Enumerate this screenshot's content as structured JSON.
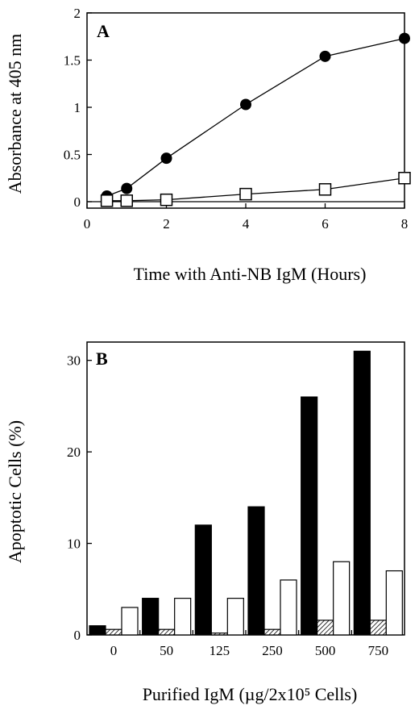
{
  "chart_data": [
    {
      "type": "line",
      "panel_label": "A",
      "xlabel": "Time with Anti-NB IgM (Hours)",
      "ylabel": "Absorbance at 405 nm",
      "xlim": [
        0,
        8
      ],
      "ylim": [
        0,
        2
      ],
      "xticks": [
        "0",
        "2",
        "4",
        "6",
        "8"
      ],
      "yticks": [
        "0",
        "0.5",
        "1",
        "1.5",
        "2"
      ],
      "grid": false,
      "series": [
        {
          "marker": "filled-circle",
          "x": [
            0.5,
            1,
            2,
            4,
            6,
            8
          ],
          "y": [
            0.06,
            0.14,
            0.46,
            1.03,
            1.54,
            1.73
          ]
        },
        {
          "marker": "open-square",
          "x": [
            0.5,
            1,
            2,
            4,
            6,
            8
          ],
          "y": [
            0.01,
            0.01,
            0.02,
            0.08,
            0.13,
            0.25
          ]
        }
      ]
    },
    {
      "type": "bar",
      "panel_label": "B",
      "xlabel": "Purified IgM (µg/2x10⁵ Cells)",
      "ylabel": "Apoptotic Cells (%)",
      "ylim": [
        0,
        32
      ],
      "yticks": [
        "0",
        "10",
        "20",
        "30"
      ],
      "categories": [
        "0",
        "50",
        "125",
        "250",
        "500",
        "750"
      ],
      "grid": false,
      "series": [
        {
          "fill": "solid-black",
          "values": [
            1,
            4,
            12,
            14,
            26,
            31
          ]
        },
        {
          "fill": "hatched",
          "values": [
            0.6,
            0.6,
            0.2,
            0.6,
            1.6,
            1.6
          ]
        },
        {
          "fill": "white",
          "values": [
            3,
            4,
            4,
            6,
            8,
            7
          ]
        }
      ]
    }
  ]
}
